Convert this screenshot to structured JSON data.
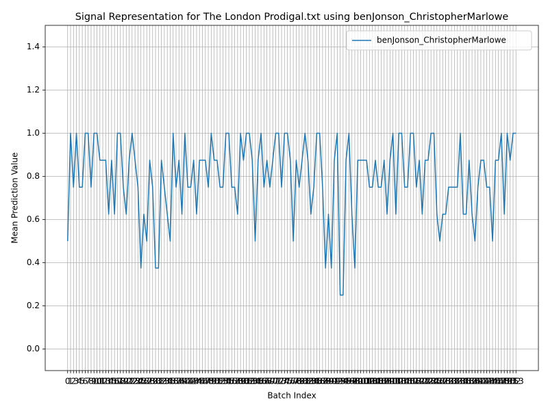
{
  "chart_data": {
    "type": "line",
    "title": "Signal Representation for The London Prodigal.txt using benJonson_ChristopherMarlowe",
    "xlabel": "Batch Index",
    "ylabel": "Mean Prediction Value",
    "x": [
      0,
      1,
      2,
      3,
      4,
      5,
      6,
      7,
      8,
      9,
      10,
      11,
      12,
      13,
      14,
      15,
      16,
      17,
      18,
      19,
      20,
      21,
      22,
      23,
      24,
      25,
      26,
      27,
      28,
      29,
      30,
      31,
      32,
      33,
      34,
      35,
      36,
      37,
      38,
      39,
      40,
      41,
      42,
      43,
      44,
      45,
      46,
      47,
      48,
      49,
      50,
      51,
      52,
      53,
      54,
      55,
      56,
      57,
      58,
      59,
      60,
      61,
      62,
      63,
      64,
      65,
      66,
      67,
      68,
      69,
      70,
      71,
      72,
      73,
      74,
      75,
      76,
      77,
      78,
      79,
      80,
      81,
      82,
      83,
      84,
      85,
      86,
      87,
      88,
      89,
      90,
      91,
      92,
      93,
      94,
      95,
      96,
      97,
      98,
      99,
      100,
      101,
      102,
      103,
      104,
      105,
      106,
      107,
      108,
      109,
      110,
      111,
      112,
      113,
      114,
      115,
      116,
      117,
      118,
      119,
      120,
      121,
      122,
      123,
      124,
      125,
      126,
      127,
      128,
      129,
      130,
      131,
      132,
      133,
      134,
      135,
      136,
      137,
      138,
      139,
      140,
      141,
      142,
      143,
      144,
      145,
      146,
      147,
      148,
      149,
      150,
      151,
      152,
      153
    ],
    "series": [
      {
        "name": "benJonson_ChristopherMarlowe",
        "color": "#1f77b4",
        "values": [
          0.5,
          1,
          0.75,
          1,
          0.75,
          0.75,
          1,
          1,
          0.75,
          1,
          1,
          0.875,
          0.875,
          0.875,
          0.625,
          0.875,
          0.625,
          1,
          1,
          0.75,
          0.625,
          0.875,
          1,
          0.875,
          0.75,
          0.375,
          0.625,
          0.5,
          0.875,
          0.75,
          0.375,
          0.375,
          0.875,
          0.75,
          0.625,
          0.5,
          1,
          0.75,
          0.875,
          0.625,
          1,
          0.75,
          0.75,
          0.875,
          0.625,
          0.875,
          0.875,
          0.875,
          0.75,
          1,
          0.875,
          0.875,
          0.75,
          0.75,
          1,
          1,
          0.75,
          0.75,
          0.625,
          1,
          0.875,
          1,
          1,
          0.875,
          0.5,
          0.875,
          1,
          0.75,
          0.875,
          0.75,
          0.875,
          1,
          1,
          0.75,
          1,
          1,
          0.875,
          0.5,
          0.875,
          0.75,
          0.875,
          1,
          0.875,
          0.625,
          0.75,
          1,
          1,
          0.75,
          0.375,
          0.625,
          0.375,
          0.875,
          1,
          0.25,
          0.25,
          0.875,
          1,
          0.625,
          0.375,
          0.875,
          0.875,
          0.875,
          0.875,
          0.75,
          0.75,
          0.875,
          0.75,
          0.75,
          0.875,
          0.625,
          0.875,
          1,
          0.625,
          1,
          1,
          0.75,
          0.75,
          1,
          1,
          0.75,
          0.875,
          0.625,
          0.875,
          0.875,
          1,
          1,
          0.625,
          0.5,
          0.625,
          0.625,
          0.75,
          0.75,
          0.75,
          0.75,
          1,
          0.625,
          0.625,
          0.875,
          0.625,
          0.5,
          0.75,
          0.875,
          0.875,
          0.75,
          0.75,
          0.5,
          0.875,
          0.875,
          1,
          0.625,
          1,
          0.875,
          1,
          1
        ]
      }
    ],
    "xlim": [
      -7.65,
      160.65
    ],
    "xticks": [
      0,
      1,
      2,
      3,
      4,
      5,
      6,
      7,
      8,
      9,
      10,
      11,
      12,
      13,
      14,
      15,
      16,
      17,
      18,
      19,
      20,
      21,
      22,
      23,
      24,
      25,
      26,
      27,
      28,
      29,
      30,
      31,
      32,
      33,
      34,
      35,
      36,
      37,
      38,
      39,
      40,
      41,
      42,
      43,
      44,
      45,
      46,
      47,
      48,
      49,
      50,
      51,
      52,
      53,
      54,
      55,
      56,
      57,
      58,
      59,
      60,
      61,
      62,
      63,
      64,
      65,
      66,
      67,
      68,
      69,
      70,
      71,
      72,
      73,
      74,
      75,
      76,
      77,
      78,
      79,
      80,
      81,
      82,
      83,
      84,
      85,
      86,
      87,
      88,
      89,
      90,
      91,
      92,
      93,
      94,
      95,
      96,
      97,
      98,
      99,
      100,
      101,
      102,
      103,
      104,
      105,
      106,
      107,
      108,
      109,
      110,
      111,
      112,
      113,
      114,
      115,
      116,
      117,
      118,
      119,
      120,
      121,
      122,
      123,
      124,
      125,
      126,
      127,
      128,
      129,
      130,
      131,
      132,
      133,
      134,
      135,
      136,
      137,
      138,
      139,
      140,
      141,
      142,
      143,
      144,
      145,
      146,
      147,
      148,
      149,
      150,
      151,
      152,
      153
    ],
    "ylim": [
      -0.1,
      1.5
    ],
    "yticks": [
      {
        "value": 0,
        "label": "0.0"
      },
      0.2,
      0.4,
      0.6,
      0.8,
      {
        "value": 1,
        "label": "1.0"
      },
      1.2,
      1.4
    ],
    "grid": true,
    "legend": "upper right"
  }
}
